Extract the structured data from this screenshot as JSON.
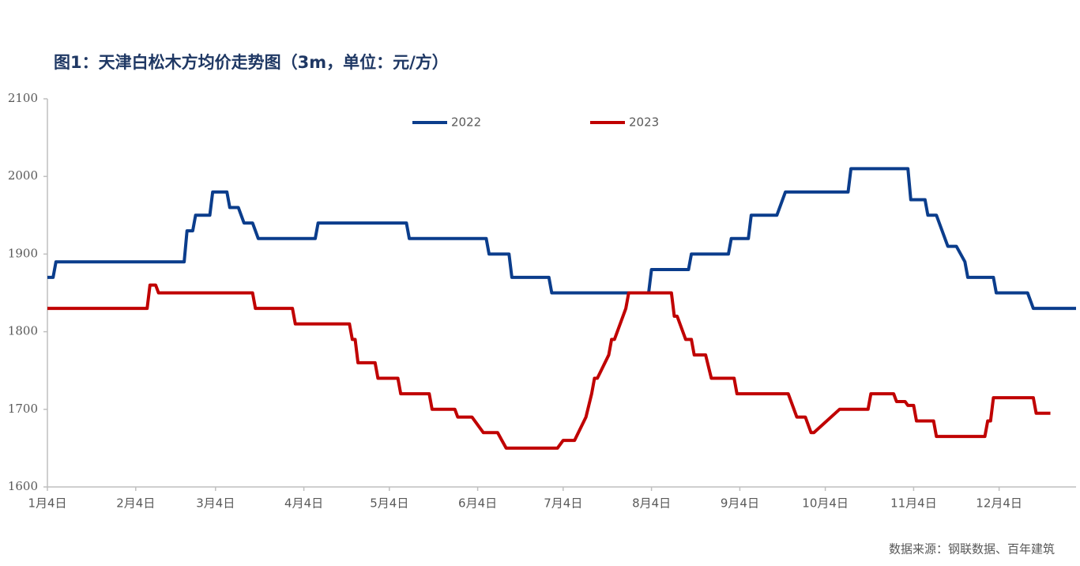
{
  "chart_data": {
    "type": "line",
    "title": "图1：天津白松木方均价走势图（3m，单位：元/方）",
    "source": "数据来源：钢联数据、百年建筑",
    "xlim": [
      0,
      361
    ],
    "xticks": [
      {
        "value": 0,
        "label": "1月4日"
      },
      {
        "value": 31,
        "label": "2月4日"
      },
      {
        "value": 59,
        "label": "3月4日"
      },
      {
        "value": 90,
        "label": "4月4日"
      },
      {
        "value": 120,
        "label": "5月4日"
      },
      {
        "value": 151,
        "label": "6月4日"
      },
      {
        "value": 181,
        "label": "7月4日"
      },
      {
        "value": 212,
        "label": "8月4日"
      },
      {
        "value": 243,
        "label": "9月4日"
      },
      {
        "value": 273,
        "label": "10月4日"
      },
      {
        "value": 304,
        "label": "11月4日"
      },
      {
        "value": 334,
        "label": "12月4日"
      }
    ],
    "ylim": [
      1600,
      2100
    ],
    "yticks": [
      1600,
      1700,
      1800,
      1900,
      2000,
      2100
    ],
    "grid": false,
    "legend": "top",
    "series": [
      {
        "name": "2022",
        "color": "#0b3d8c",
        "x": [
          0,
          2,
          3,
          48,
          49,
          51,
          52,
          57,
          58,
          63,
          64,
          67,
          69,
          72,
          74,
          94,
          95,
          126,
          127,
          154,
          155,
          162,
          163,
          176,
          177,
          211,
          212,
          225,
          226,
          239,
          240,
          246,
          247,
          256,
          259,
          281,
          282,
          302,
          303,
          308,
          309,
          312,
          316,
          319,
          322,
          323,
          332,
          333,
          344,
          346,
          361
        ],
        "values": [
          1870,
          1870,
          1890,
          1890,
          1930,
          1930,
          1950,
          1950,
          1980,
          1980,
          1960,
          1960,
          1940,
          1940,
          1920,
          1920,
          1940,
          1940,
          1920,
          1920,
          1900,
          1900,
          1870,
          1870,
          1850,
          1850,
          1880,
          1880,
          1900,
          1900,
          1920,
          1920,
          1950,
          1950,
          1980,
          1980,
          2010,
          2010,
          1970,
          1970,
          1950,
          1950,
          1910,
          1910,
          1890,
          1870,
          1870,
          1850,
          1850,
          1830,
          1830
        ]
      },
      {
        "name": "2023",
        "color": "#c00000",
        "x": [
          0,
          35,
          36,
          38,
          39,
          72,
          73,
          86,
          87,
          106,
          107,
          108,
          109,
          115,
          116,
          123,
          124,
          134,
          135,
          143,
          144,
          149,
          153,
          158,
          161,
          179,
          181,
          185,
          189,
          191,
          192,
          193,
          197,
          198,
          199,
          203,
          204,
          219,
          220,
          221,
          224,
          226,
          227,
          231,
          233,
          241,
          242,
          260,
          263,
          266,
          268,
          269,
          278,
          288,
          289,
          297,
          298,
          301,
          302,
          304,
          305,
          311,
          312,
          329,
          330,
          331,
          332,
          346,
          347,
          352
        ],
        "values": [
          1830,
          1830,
          1860,
          1860,
          1850,
          1850,
          1830,
          1830,
          1810,
          1810,
          1790,
          1790,
          1760,
          1760,
          1740,
          1740,
          1720,
          1720,
          1700,
          1700,
          1690,
          1690,
          1670,
          1670,
          1650,
          1650,
          1660,
          1660,
          1690,
          1720,
          1740,
          1740,
          1770,
          1790,
          1790,
          1830,
          1850,
          1850,
          1820,
          1820,
          1790,
          1790,
          1770,
          1770,
          1740,
          1740,
          1720,
          1720,
          1690,
          1690,
          1670,
          1670,
          1700,
          1700,
          1720,
          1720,
          1710,
          1710,
          1705,
          1705,
          1685,
          1685,
          1665,
          1665,
          1685,
          1685,
          1715,
          1715,
          1695,
          1695
        ]
      }
    ]
  }
}
